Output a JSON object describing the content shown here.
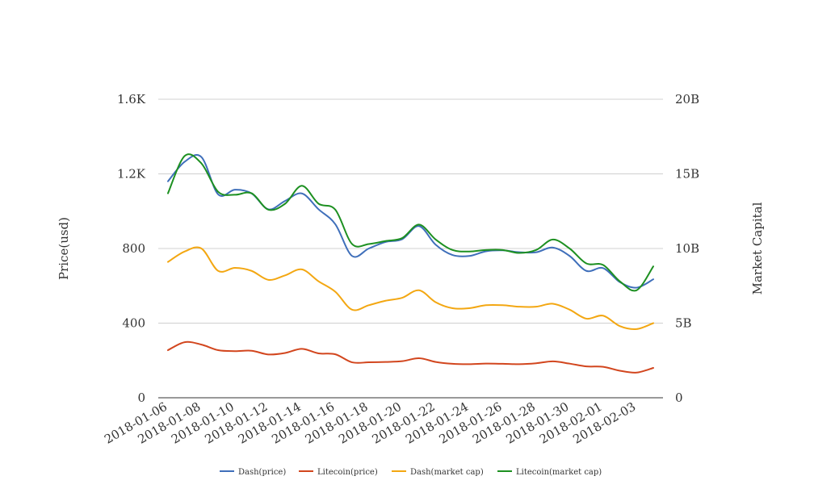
{
  "chart_data": {
    "type": "line",
    "title": "",
    "xlabel": "",
    "ylabel_left": "Price(usd)",
    "ylabel_right": "Market Capital",
    "ylim_left": [
      0,
      1600
    ],
    "ylim_right": [
      0,
      20000000000
    ],
    "yticks_left": [
      {
        "value": 0,
        "label": "0"
      },
      {
        "value": 400,
        "label": "400"
      },
      {
        "value": 800,
        "label": "800"
      },
      {
        "value": 1200,
        "label": "1.2K"
      },
      {
        "value": 1600,
        "label": "1.6K"
      }
    ],
    "yticks_right": [
      {
        "value": 0,
        "label": "0"
      },
      {
        "value": 5000000000,
        "label": "5B"
      },
      {
        "value": 10000000000,
        "label": "10B"
      },
      {
        "value": 15000000000,
        "label": "15B"
      },
      {
        "value": 20000000000,
        "label": "20B"
      }
    ],
    "x": [
      "2018-01-06",
      "2018-01-07",
      "2018-01-08",
      "2018-01-09",
      "2018-01-10",
      "2018-01-11",
      "2018-01-12",
      "2018-01-13",
      "2018-01-14",
      "2018-01-15",
      "2018-01-16",
      "2018-01-17",
      "2018-01-18",
      "2018-01-19",
      "2018-01-20",
      "2018-01-21",
      "2018-01-22",
      "2018-01-23",
      "2018-01-24",
      "2018-01-25",
      "2018-01-26",
      "2018-01-27",
      "2018-01-28",
      "2018-01-29",
      "2018-01-30",
      "2018-01-31",
      "2018-02-01",
      "2018-02-02",
      "2018-02-03",
      "2018-02-04"
    ],
    "xtick_labels": [
      "2018-01-06",
      "2018-01-08",
      "2018-01-10",
      "2018-01-12",
      "2018-01-14",
      "2018-01-16",
      "2018-01-18",
      "2018-01-20",
      "2018-01-22",
      "2018-01-24",
      "2018-01-26",
      "2018-01-28",
      "2018-01-30",
      "2018-02-01",
      "2018-02-03"
    ],
    "series": [
      {
        "name": "Dash(price)",
        "axis": "left",
        "color": "#3f6fba",
        "values": [
          1160,
          1265,
          1290,
          1090,
          1115,
          1095,
          1010,
          1055,
          1095,
          1010,
          930,
          760,
          800,
          835,
          850,
          920,
          820,
          765,
          760,
          785,
          790,
          780,
          780,
          805,
          760,
          680,
          695,
          620,
          590,
          635
        ]
      },
      {
        "name": "Litecoin(price)",
        "axis": "left",
        "color": "#d2461e",
        "values": [
          255,
          298,
          285,
          255,
          250,
          252,
          232,
          240,
          262,
          238,
          233,
          190,
          190,
          192,
          196,
          212,
          192,
          182,
          180,
          183,
          182,
          180,
          185,
          195,
          183,
          168,
          166,
          145,
          135,
          160
        ]
      },
      {
        "name": "Dash(market cap)",
        "axis": "right",
        "color": "#f3a712",
        "values": [
          9100000000,
          9800000000,
          10000000000,
          8500000000,
          8700000000,
          8500000000,
          7900000000,
          8200000000,
          8600000000,
          7800000000,
          7100000000,
          5900000000,
          6200000000,
          6500000000,
          6700000000,
          7200000000,
          6400000000,
          6000000000,
          6000000000,
          6200000000,
          6200000000,
          6100000000,
          6100000000,
          6300000000,
          5900000000,
          5300000000,
          5500000000,
          4800000000,
          4600000000,
          5000000000
        ]
      },
      {
        "name": "Litecoin(market cap)",
        "axis": "right",
        "color": "#1d9021",
        "values": [
          13700000000,
          16200000000,
          15700000000,
          13800000000,
          13600000000,
          13700000000,
          12600000000,
          13000000000,
          14200000000,
          13000000000,
          12600000000,
          10300000000,
          10300000000,
          10500000000,
          10700000000,
          11600000000,
          10600000000,
          9900000000,
          9800000000,
          9900000000,
          9900000000,
          9700000000,
          9900000000,
          10600000000,
          10000000000,
          9000000000,
          8900000000,
          7800000000,
          7200000000,
          8800000000
        ]
      }
    ],
    "legend_position": "bottom-center"
  }
}
